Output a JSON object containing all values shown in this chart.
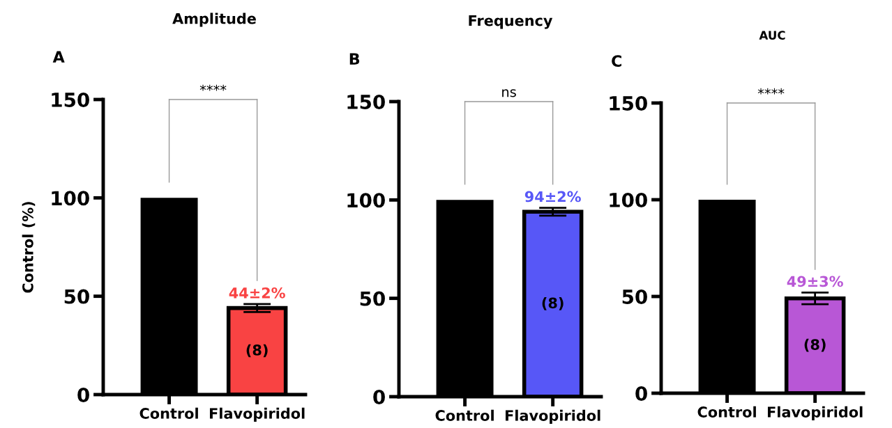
{
  "chart_data": [
    {
      "type": "bar",
      "title": "Amplitude",
      "ylabel": "Control (%)",
      "categories": [
        "Control",
        "Flavopiridol"
      ],
      "values": [
        100,
        44
      ],
      "colors": [
        "#000000",
        "#f94343"
      ],
      "errors": [
        null,
        2
      ],
      "value_labels": [
        null,
        "44±2%"
      ],
      "annotations": [
        "A",
        "****",
        "(8)"
      ],
      "ylim": [
        0,
        150
      ],
      "yticks": [
        0,
        50,
        100,
        150
      ],
      "grid": false,
      "legend": false
    },
    {
      "type": "bar",
      "title": "Frequency",
      "categories": [
        "Control",
        "Flavopiridol"
      ],
      "values": [
        100,
        94
      ],
      "colors": [
        "#000000",
        "#5757f7"
      ],
      "errors": [
        null,
        2
      ],
      "value_labels": [
        null,
        "94±2%"
      ],
      "annotations": [
        "B",
        "ns",
        "(8)"
      ],
      "ylim": [
        0,
        150
      ],
      "yticks": [
        0,
        50,
        100,
        150
      ],
      "grid": false,
      "legend": false
    },
    {
      "type": "bar",
      "title": "AUC",
      "categories": [
        "Control",
        "Flavopiridol"
      ],
      "values": [
        100,
        49
      ],
      "colors": [
        "#000000",
        "#b857d6"
      ],
      "errors": [
        null,
        3
      ],
      "value_labels": [
        null,
        "49±3%"
      ],
      "annotations": [
        "C",
        "****",
        "(8)"
      ],
      "ylim": [
        0,
        150
      ],
      "yticks": [
        0,
        50,
        100,
        150
      ],
      "grid": false,
      "legend": false
    }
  ]
}
